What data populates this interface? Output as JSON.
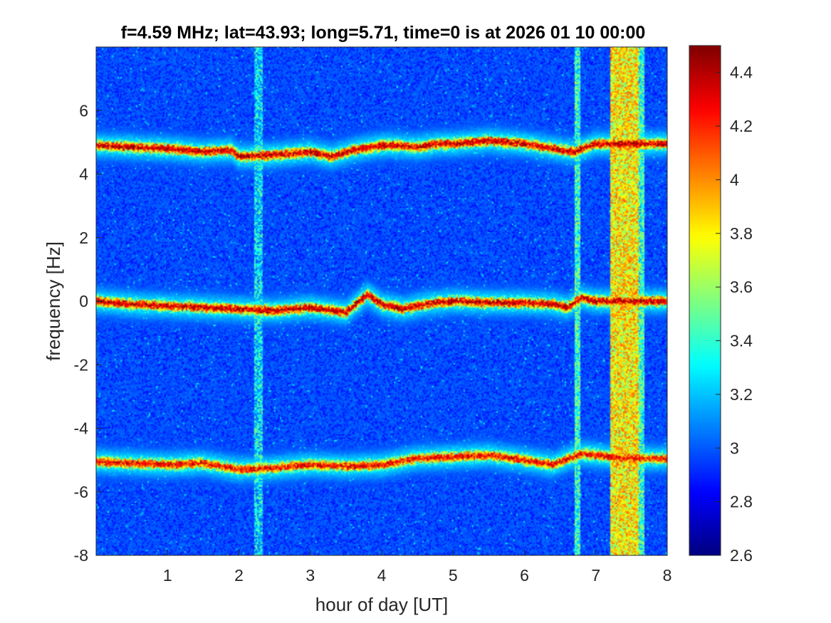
{
  "chart_data": {
    "type": "heatmap",
    "title": "f=4.59 MHz;  lat=43.93; long=5.71, time=0 is at 2026 01 10 00:00",
    "xlabel": "hour of day [UT]",
    "ylabel": "frequency [Hz]",
    "xlim": [
      0,
      8
    ],
    "ylim": [
      -8,
      8
    ],
    "x_ticks": [
      1,
      2,
      3,
      4,
      5,
      6,
      7,
      8
    ],
    "x_tick_labels": [
      "1",
      "2",
      "3",
      "4",
      "5",
      "6",
      "7",
      "8"
    ],
    "y_ticks": [
      -8,
      -6,
      -4,
      -2,
      0,
      2,
      4,
      6
    ],
    "y_tick_labels": [
      "-8",
      "-6",
      "-4",
      "-2",
      "0",
      "2",
      "4",
      "6"
    ],
    "colorbar": {
      "colormap": "jet",
      "limits": [
        2.6,
        4.5
      ],
      "ticks": [
        2.6,
        2.8,
        3.0,
        3.2,
        3.4,
        3.6,
        3.8,
        4.0,
        4.2,
        4.4
      ],
      "tick_labels": [
        "2.6",
        "2.8",
        "3",
        "3.2",
        "3.4",
        "3.6",
        "3.8",
        "4",
        "4.2",
        "4.4"
      ]
    },
    "background_level": 2.85,
    "traces": [
      {
        "points": [
          [
            0.0,
            4.9
          ],
          [
            0.5,
            4.85
          ],
          [
            1.0,
            4.8
          ],
          [
            1.5,
            4.7
          ],
          [
            1.9,
            4.75
          ],
          [
            2.0,
            4.55
          ],
          [
            2.5,
            4.6
          ],
          [
            3.0,
            4.7
          ],
          [
            3.3,
            4.55
          ],
          [
            3.6,
            4.75
          ],
          [
            4.0,
            4.9
          ],
          [
            4.2,
            4.9
          ],
          [
            4.5,
            4.85
          ],
          [
            4.8,
            4.95
          ],
          [
            5.0,
            4.95
          ],
          [
            5.5,
            5.05
          ],
          [
            6.0,
            4.95
          ],
          [
            6.4,
            4.8
          ],
          [
            6.7,
            4.7
          ],
          [
            7.0,
            4.95
          ],
          [
            7.5,
            4.95
          ],
          [
            8.0,
            4.95
          ]
        ],
        "level": 4.4
      },
      {
        "points": [
          [
            0.0,
            0.0
          ],
          [
            0.5,
            -0.1
          ],
          [
            1.0,
            -0.15
          ],
          [
            1.5,
            -0.2
          ],
          [
            2.0,
            -0.25
          ],
          [
            2.5,
            -0.3
          ],
          [
            3.0,
            -0.2
          ],
          [
            3.5,
            -0.35
          ],
          [
            3.8,
            0.2
          ],
          [
            4.0,
            -0.1
          ],
          [
            4.3,
            -0.25
          ],
          [
            4.6,
            -0.1
          ],
          [
            5.0,
            0.0
          ],
          [
            5.5,
            -0.05
          ],
          [
            6.0,
            -0.05
          ],
          [
            6.4,
            -0.1
          ],
          [
            6.6,
            -0.2
          ],
          [
            6.8,
            0.1
          ],
          [
            7.0,
            0.0
          ],
          [
            7.5,
            0.0
          ],
          [
            8.0,
            0.0
          ]
        ],
        "level": 4.4
      },
      {
        "points": [
          [
            0.0,
            -5.05
          ],
          [
            0.5,
            -5.1
          ],
          [
            1.0,
            -5.15
          ],
          [
            1.5,
            -5.1
          ],
          [
            2.0,
            -5.3
          ],
          [
            2.5,
            -5.25
          ],
          [
            3.0,
            -5.15
          ],
          [
            3.5,
            -5.2
          ],
          [
            4.0,
            -5.15
          ],
          [
            4.5,
            -4.95
          ],
          [
            5.0,
            -4.9
          ],
          [
            5.5,
            -4.85
          ],
          [
            6.0,
            -5.0
          ],
          [
            6.4,
            -5.15
          ],
          [
            6.8,
            -4.8
          ],
          [
            7.2,
            -4.9
          ],
          [
            7.5,
            -4.95
          ],
          [
            8.0,
            -4.95
          ]
        ],
        "level": 4.3
      }
    ],
    "interference_bands": [
      {
        "x": 2.27,
        "width": 0.06,
        "level": 3.25
      },
      {
        "x": 6.75,
        "width": 0.04,
        "level": 3.4
      },
      {
        "x": 7.4,
        "width": 0.2,
        "level": 3.8
      },
      {
        "x": 7.65,
        "width": 0.04,
        "level": 3.4
      }
    ]
  }
}
